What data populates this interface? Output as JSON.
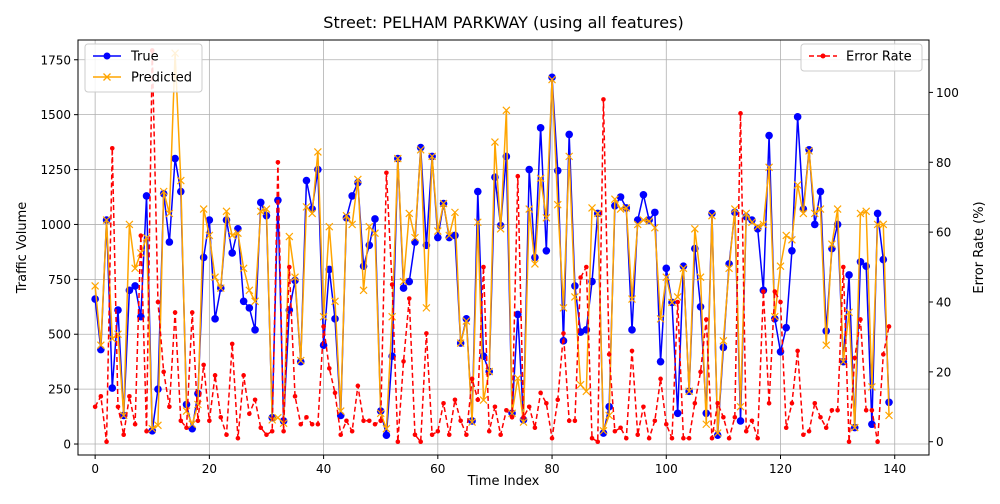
{
  "chart_data": {
    "type": "line",
    "title": "Street: PELHAM PARKWAY (using all features)",
    "xlabel": "Time Index",
    "ylabel": "Traffic Volume",
    "y2label": "Error Rate (%)",
    "xlim": [
      -3,
      146
    ],
    "ylim": [
      -50,
      1840
    ],
    "y2lim": [
      -3.8,
      115
    ],
    "xticks": [
      0,
      20,
      40,
      60,
      80,
      100,
      120,
      140
    ],
    "yticks": [
      0,
      250,
      500,
      750,
      1000,
      1250,
      1500,
      1750
    ],
    "y2ticks": [
      0,
      20,
      40,
      60,
      80,
      100
    ],
    "grid": true,
    "legend_left": "upper-left",
    "legend_right": "upper-right",
    "colors": {
      "true": "#0000ff",
      "predicted": "#ffa500",
      "error": "#ff0000"
    },
    "x": [
      0,
      1,
      2,
      3,
      4,
      5,
      6,
      7,
      8,
      9,
      10,
      11,
      12,
      13,
      14,
      15,
      16,
      17,
      18,
      19,
      20,
      21,
      22,
      23,
      24,
      25,
      26,
      27,
      28,
      29,
      30,
      31,
      32,
      33,
      34,
      35,
      36,
      37,
      38,
      39,
      40,
      41,
      42,
      43,
      44,
      45,
      46,
      47,
      48,
      49,
      50,
      51,
      52,
      53,
      54,
      55,
      56,
      57,
      58,
      59,
      60,
      61,
      62,
      63,
      64,
      65,
      66,
      67,
      68,
      69,
      70,
      71,
      72,
      73,
      74,
      75,
      76,
      77,
      78,
      79,
      80,
      81,
      82,
      83,
      84,
      85,
      86,
      87,
      88,
      89,
      90,
      91,
      92,
      93,
      94,
      95,
      96,
      97,
      98,
      99,
      100,
      101,
      102,
      103,
      104,
      105,
      106,
      107,
      108,
      109,
      110,
      111,
      112,
      113,
      114,
      115,
      116,
      117,
      118,
      119,
      120,
      121,
      122,
      123,
      124,
      125,
      126,
      127,
      128,
      129,
      130,
      131,
      132,
      133,
      134,
      135,
      136,
      137,
      138,
      139
    ],
    "series": [
      {
        "name": "True",
        "values": [
          660,
          430,
          1020,
          255,
          610,
          130,
          700,
          720,
          580,
          1130,
          60,
          250,
          1140,
          920,
          1300,
          1150,
          180,
          70,
          230,
          850,
          1020,
          570,
          710,
          1020,
          870,
          980,
          650,
          620,
          520,
          1100,
          1040,
          120,
          1110,
          105,
          610,
          745,
          375,
          1200,
          1070,
          1250,
          450,
          795,
          570,
          130,
          1030,
          1130,
          1190,
          810,
          905,
          1025,
          150,
          40,
          400,
          1300,
          710,
          740,
          920,
          1350,
          905,
          1310,
          940,
          1095,
          940,
          950,
          460,
          570,
          105,
          1150,
          400,
          330,
          1215,
          995,
          1310,
          140,
          590,
          110,
          1250,
          850,
          1440,
          880,
          1670,
          1245,
          470,
          1410,
          720,
          510,
          520,
          740,
          1050,
          50,
          170,
          1085,
          1125,
          1075,
          520,
          1020,
          1135,
          1020,
          1055,
          375,
          800,
          645,
          140,
          810,
          240,
          890,
          625,
          140,
          1050,
          40,
          440,
          820,
          1055,
          105,
          1035,
          1020,
          980,
          700,
          1405,
          570,
          420,
          530,
          880,
          1490,
          1070,
          1340,
          1000,
          1150,
          515,
          890,
          1000,
          375,
          770,
          75,
          830,
          810,
          90,
          1050,
          840,
          190
        ]
      },
      {
        "name": "Predicted",
        "values": [
          720,
          450,
          1020,
          480,
          500,
          130,
          1000,
          800,
          870,
          940,
          70,
          85,
          1150,
          1050,
          1780,
          1200,
          150,
          90,
          180,
          1070,
          950,
          760,
          710,
          1060,
          950,
          960,
          800,
          700,
          650,
          1060,
          1070,
          110,
          120,
          95,
          945,
          760,
          380,
          1080,
          1050,
          1330,
          580,
          990,
          650,
          150,
          1040,
          1000,
          1205,
          700,
          990,
          960,
          140,
          70,
          580,
          1300,
          740,
          1050,
          940,
          1340,
          620,
          1310,
          970,
          1095,
          950,
          1055,
          460,
          560,
          100,
          1010,
          200,
          330,
          1375,
          980,
          1520,
          140,
          300,
          100,
          1070,
          820,
          1210,
          1030,
          1660,
          1090,
          620,
          1310,
          670,
          270,
          240,
          1075,
          1050,
          60,
          130,
          1115,
          1070,
          1075,
          660,
          1000,
          1020,
          1015,
          985,
          570,
          760,
          645,
          670,
          800,
          240,
          980,
          760,
          90,
          1040,
          50,
          470,
          800,
          1070,
          170,
          1050,
          1010,
          990,
          1000,
          1260,
          580,
          810,
          950,
          930,
          1180,
          1050,
          1335,
          1050,
          1070,
          450,
          910,
          1070,
          375,
          600,
          75,
          1050,
          1060,
          260,
          1000,
          1000,
          130
        ]
      },
      {
        "name": "Error Rate",
        "values": [
          10,
          13,
          0,
          84,
          10,
          2,
          13,
          5,
          59,
          3,
          112,
          40,
          20,
          10,
          37,
          6,
          4,
          37,
          6,
          22,
          6,
          19,
          7,
          2,
          28,
          1,
          19,
          8,
          12,
          4,
          2,
          3,
          80,
          3,
          50,
          13,
          5,
          7,
          5,
          5,
          33,
          21,
          14,
          2,
          6,
          3,
          16,
          6,
          6,
          5,
          6,
          77,
          45,
          0,
          23,
          41,
          2,
          0,
          31,
          2,
          3,
          11,
          2,
          12,
          6,
          2,
          18,
          12,
          50,
          3,
          10,
          2,
          9,
          7,
          76,
          7,
          10,
          4,
          14,
          11,
          1,
          12,
          31,
          6,
          6,
          47,
          50,
          1,
          0,
          98,
          25,
          3,
          4,
          1,
          26,
          2,
          10,
          1,
          6,
          18,
          5,
          1,
          40,
          1,
          1,
          11,
          20,
          35,
          1,
          11,
          7,
          1,
          7,
          94,
          3,
          6,
          1,
          43,
          11,
          43,
          40,
          4,
          11,
          26,
          2,
          3,
          11,
          7,
          4,
          9,
          9,
          50,
          0,
          24,
          35,
          9,
          9,
          0,
          25,
          33
        ]
      }
    ]
  }
}
